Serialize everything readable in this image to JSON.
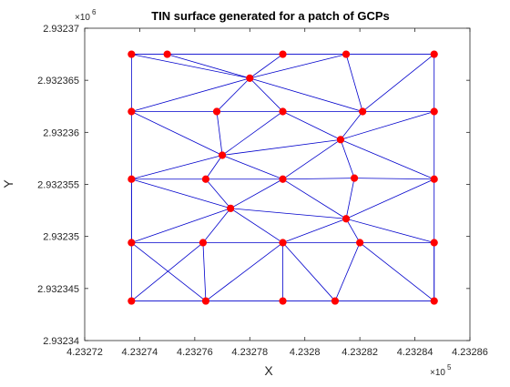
{
  "chart_data": {
    "type": "scatter",
    "title": "TIN surface generated for a patch of GCPs",
    "xlabel": "X",
    "ylabel": "Y",
    "xlim": [
      4.23272,
      4.23286
    ],
    "ylim": [
      2.93234,
      2.93237
    ],
    "x_ticks": [
      4.23272,
      4.23274,
      4.23276,
      4.23278,
      4.2328,
      4.23282,
      4.23284,
      4.23286
    ],
    "x_tick_labels": [
      "4.23272",
      "4.23274",
      "4.23276",
      "4.23278",
      "4.2328",
      "4.23282",
      "4.23284",
      "4.23286"
    ],
    "y_ticks": [
      2.93234,
      2.932345,
      2.93235,
      2.932355,
      2.93236,
      2.932365,
      2.93237
    ],
    "y_tick_labels": [
      "2.93234",
      "2.932345",
      "2.93235",
      "2.932355",
      "2.93236",
      "2.932365",
      "2.93237"
    ],
    "x_exponent": "×10",
    "x_exponent_power": "5",
    "y_exponent": "×10",
    "y_exponent_power": "6",
    "grid": false,
    "point_color": "#ff0000",
    "edge_color": "#0000cc",
    "points": [
      {
        "x": 4.232737,
        "y": 2.9323675
      },
      {
        "x": 4.23275,
        "y": 2.9323675
      },
      {
        "x": 4.232792,
        "y": 2.9323675
      },
      {
        "x": 4.232815,
        "y": 2.9323675
      },
      {
        "x": 4.232847,
        "y": 2.9323675
      },
      {
        "x": 4.23278,
        "y": 2.9323652
      },
      {
        "x": 4.232737,
        "y": 2.932362
      },
      {
        "x": 4.232768,
        "y": 2.932362
      },
      {
        "x": 4.232792,
        "y": 2.932362
      },
      {
        "x": 4.232821,
        "y": 2.932362
      },
      {
        "x": 4.232847,
        "y": 2.932362
      },
      {
        "x": 4.232813,
        "y": 2.9323593
      },
      {
        "x": 4.23277,
        "y": 2.9323578
      },
      {
        "x": 4.232737,
        "y": 2.9323555
      },
      {
        "x": 4.232764,
        "y": 2.9323555
      },
      {
        "x": 4.232792,
        "y": 2.9323555
      },
      {
        "x": 4.232818,
        "y": 2.9323556
      },
      {
        "x": 4.232847,
        "y": 2.9323555
      },
      {
        "x": 4.232773,
        "y": 2.9323527
      },
      {
        "x": 4.232815,
        "y": 2.9323517
      },
      {
        "x": 4.232737,
        "y": 2.9323494
      },
      {
        "x": 4.232763,
        "y": 2.9323494
      },
      {
        "x": 4.232792,
        "y": 2.9323494
      },
      {
        "x": 4.23282,
        "y": 2.9323494
      },
      {
        "x": 4.232847,
        "y": 2.9323494
      },
      {
        "x": 4.232737,
        "y": 2.9323438
      },
      {
        "x": 4.232764,
        "y": 2.9323438
      },
      {
        "x": 4.232792,
        "y": 2.9323438
      },
      {
        "x": 4.232811,
        "y": 2.9323438
      },
      {
        "x": 4.232847,
        "y": 2.9323438
      }
    ],
    "edges": [
      [
        0,
        1
      ],
      [
        1,
        2
      ],
      [
        2,
        3
      ],
      [
        3,
        4
      ],
      [
        0,
        6
      ],
      [
        6,
        13
      ],
      [
        13,
        20
      ],
      [
        20,
        25
      ],
      [
        4,
        10
      ],
      [
        10,
        17
      ],
      [
        17,
        24
      ],
      [
        24,
        29
      ],
      [
        25,
        26
      ],
      [
        26,
        27
      ],
      [
        27,
        28
      ],
      [
        28,
        29
      ],
      [
        0,
        5
      ],
      [
        1,
        5
      ],
      [
        2,
        5
      ],
      [
        3,
        5
      ],
      [
        3,
        9
      ],
      [
        4,
        9
      ],
      [
        5,
        6
      ],
      [
        5,
        7
      ],
      [
        5,
        8
      ],
      [
        5,
        9
      ],
      [
        6,
        7
      ],
      [
        7,
        8
      ],
      [
        8,
        9
      ],
      [
        9,
        10
      ],
      [
        6,
        12
      ],
      [
        7,
        12
      ],
      [
        8,
        12
      ],
      [
        8,
        11
      ],
      [
        9,
        11
      ],
      [
        10,
        11
      ],
      [
        12,
        11
      ],
      [
        12,
        13
      ],
      [
        12,
        14
      ],
      [
        12,
        15
      ],
      [
        11,
        15
      ],
      [
        11,
        16
      ],
      [
        11,
        17
      ],
      [
        13,
        14
      ],
      [
        14,
        15
      ],
      [
        15,
        16
      ],
      [
        16,
        17
      ],
      [
        13,
        18
      ],
      [
        14,
        18
      ],
      [
        15,
        18
      ],
      [
        15,
        19
      ],
      [
        16,
        19
      ],
      [
        17,
        19
      ],
      [
        13,
        20
      ],
      [
        18,
        20
      ],
      [
        18,
        21
      ],
      [
        18,
        22
      ],
      [
        18,
        19
      ],
      [
        19,
        22
      ],
      [
        19,
        23
      ],
      [
        19,
        24
      ],
      [
        20,
        21
      ],
      [
        21,
        22
      ],
      [
        22,
        23
      ],
      [
        23,
        24
      ],
      [
        20,
        26
      ],
      [
        21,
        25
      ],
      [
        21,
        26
      ],
      [
        22,
        26
      ],
      [
        22,
        27
      ],
      [
        22,
        28
      ],
      [
        23,
        28
      ],
      [
        23,
        29
      ],
      [
        24,
        29
      ]
    ]
  }
}
